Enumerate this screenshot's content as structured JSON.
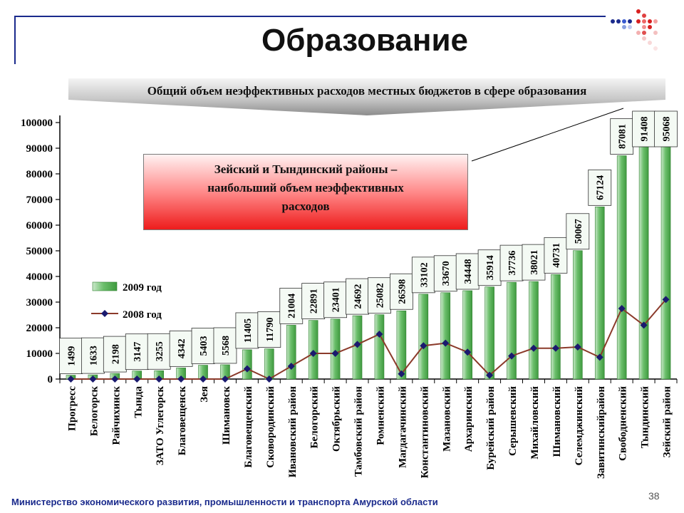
{
  "slide": {
    "title": "Образование",
    "banner": "Общий объем неэффективных  расходов местных бюджетов в сфере образования",
    "callout": [
      "Зейский и Тындинский районы –",
      "наибольший объем неэффективных",
      "расходов"
    ],
    "footer": "Министерство экономического развития, промышленности и транспорта Амурской области",
    "page_number": "38",
    "colors": {
      "bar": "#3f9a3f",
      "line": "#8b3a2a",
      "marker": "#1a1a6e",
      "footer_text": "#1a2a8c"
    }
  },
  "chart_data": {
    "type": "bar",
    "title": "Общий объем неэффективных  расходов местных бюджетов в сфере образования",
    "xlabel": "",
    "ylabel": "",
    "ylim": [
      0,
      100000
    ],
    "yticks": [
      0,
      10000,
      20000,
      30000,
      40000,
      50000,
      60000,
      70000,
      80000,
      90000,
      100000
    ],
    "legend_position": "left",
    "grid": false,
    "categories": [
      "Прогресс",
      "Белогорск",
      "Райчихинск",
      "Тында",
      "ЗАТО Углегорск",
      "Благовещенск",
      "Зея",
      "Шимановск",
      "Благовещенский",
      "Сковородинский",
      "Ивановский район",
      "Белогорский",
      "Октябрьский",
      "Тамбовский район",
      "Ромненский",
      "Магдагачинский",
      "Константиновский",
      "Мазановский",
      "Архаринский",
      "Бурейский район",
      "Серышевский",
      "Михайловский",
      "Шимановский",
      "Селемджинский",
      "Завитинскийрайон",
      "Свободненский",
      "Тындинский",
      "Зейский район"
    ],
    "series": [
      {
        "name": "2009 год",
        "type": "bar",
        "values": [
          1499,
          1633,
          2198,
          3147,
          3255,
          4342,
          5403,
          5568,
          11405,
          11790,
          21004,
          22891,
          23401,
          24692,
          25082,
          26598,
          33102,
          33670,
          34448,
          35914,
          37736,
          38021,
          40731,
          50067,
          67124,
          87081,
          91408,
          95068
        ]
      },
      {
        "name": "2008 год",
        "type": "line",
        "values": [
          0,
          0,
          0,
          0,
          0,
          0,
          0,
          0,
          4000,
          0,
          5000,
          10000,
          10000,
          13500,
          17500,
          2000,
          13000,
          14000,
          10500,
          1500,
          9000,
          12000,
          12000,
          12500,
          8500,
          27500,
          21000,
          31000
        ]
      }
    ]
  }
}
